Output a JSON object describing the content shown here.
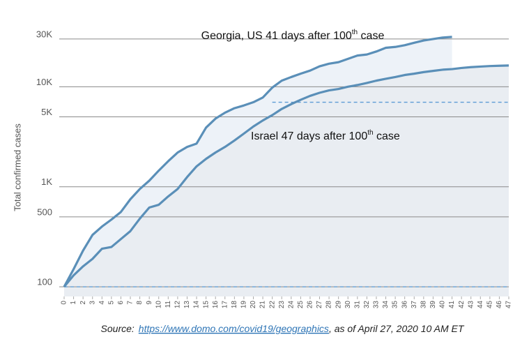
{
  "chart_data": {
    "type": "line",
    "y_label": "Total confirmed cases",
    "log_y": true,
    "grid": true,
    "xlim": [
      0,
      47
    ],
    "xticks": [
      0,
      1,
      2,
      3,
      4,
      5,
      6,
      7,
      8,
      9,
      10,
      11,
      12,
      13,
      14,
      15,
      16,
      17,
      18,
      19,
      20,
      21,
      22,
      23,
      24,
      25,
      26,
      27,
      28,
      29,
      30,
      31,
      32,
      33,
      34,
      35,
      36,
      37,
      38,
      39,
      40,
      41,
      42,
      43,
      44,
      45,
      46,
      47
    ],
    "ylim": [
      80,
      40000
    ],
    "yticks": [
      100,
      500,
      {
        "value": 1000,
        "label": "1K"
      },
      {
        "value": 5000,
        "label": "5K"
      },
      {
        "value": 10000,
        "label": "10K"
      },
      {
        "value": 30000,
        "label": "30K"
      }
    ],
    "reference_lines": [
      {
        "value": 100,
        "from": 0,
        "color": "#5b9bd5"
      },
      {
        "value": 7000,
        "from": 22,
        "color": "#5b9bd5"
      }
    ],
    "series": [
      {
        "name": "Georgia, US",
        "color": "#5a8fb8",
        "area": "#edf2f8",
        "annotation": [
          "Georgia, US 41 days after 100",
          "th",
          " case"
        ],
        "x": [
          0,
          1,
          2,
          3,
          4,
          5,
          6,
          7,
          8,
          9,
          10,
          11,
          12,
          13,
          14,
          15,
          16,
          17,
          18,
          19,
          20,
          21,
          22,
          23,
          24,
          25,
          26,
          27,
          28,
          29,
          30,
          31,
          32,
          33,
          34,
          35,
          36,
          37,
          38,
          39,
          40,
          41
        ],
        "values": [
          100,
          150,
          230,
          330,
          400,
          470,
          560,
          750,
          950,
          1150,
          1450,
          1800,
          2200,
          2500,
          2700,
          3900,
          4800,
          5500,
          6100,
          6500,
          7000,
          7800,
          9800,
          11500,
          12500,
          13500,
          14500,
          16000,
          17000,
          17600,
          19000,
          20500,
          21000,
          22500,
          24500,
          25000,
          26000,
          27500,
          29000,
          30000,
          31000,
          31500
        ]
      },
      {
        "name": "Israel",
        "color": "#5a8fb8",
        "area": "#e9edf2",
        "annotation": [
          "Israel 47 days after 100",
          "th",
          " case"
        ],
        "x": [
          0,
          1,
          2,
          3,
          4,
          5,
          6,
          7,
          8,
          9,
          10,
          11,
          12,
          13,
          14,
          15,
          16,
          17,
          18,
          19,
          20,
          21,
          22,
          23,
          24,
          25,
          26,
          27,
          28,
          29,
          30,
          31,
          32,
          33,
          34,
          35,
          36,
          37,
          38,
          39,
          40,
          41,
          42,
          43,
          44,
          45,
          46,
          47
        ],
        "values": [
          100,
          130,
          160,
          190,
          240,
          250,
          300,
          360,
          480,
          620,
          660,
          800,
          950,
          1250,
          1600,
          1900,
          2200,
          2500,
          2900,
          3400,
          4000,
          4600,
          5200,
          6000,
          6700,
          7400,
          8100,
          8700,
          9200,
          9500,
          10000,
          10400,
          10900,
          11500,
          12000,
          12500,
          13100,
          13500,
          14000,
          14400,
          14800,
          15000,
          15400,
          15700,
          15900,
          16100,
          16200,
          16300
        ]
      }
    ],
    "source": {
      "prefix": "Source:",
      "link": "https://www.domo.com/covid19/geographics",
      "suffix": ", as of April 27, 2020 10 AM ET"
    }
  }
}
